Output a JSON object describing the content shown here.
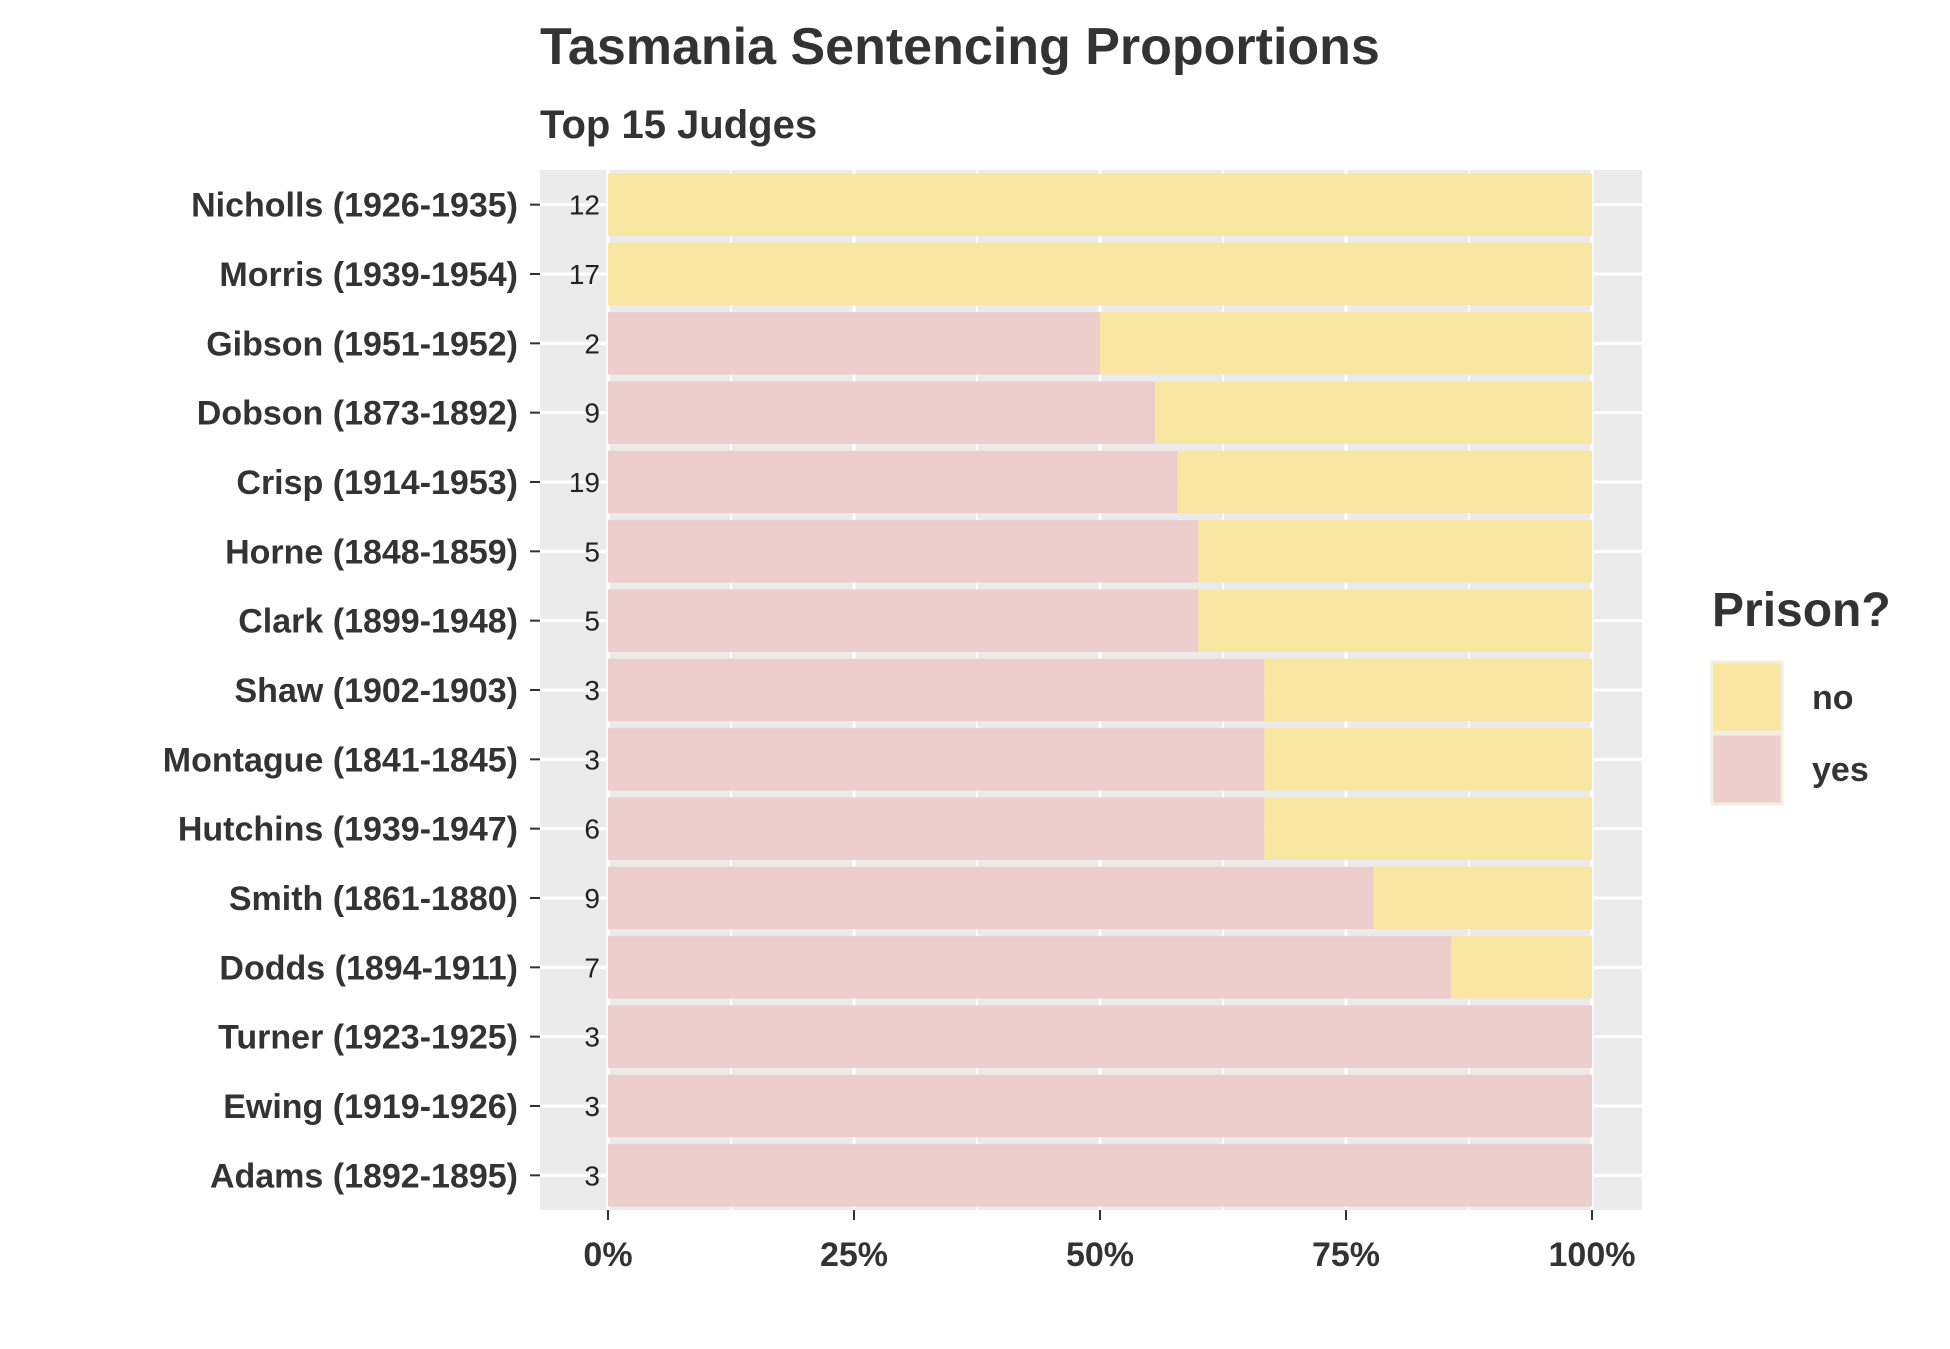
{
  "chart_data": {
    "type": "bar",
    "orientation": "horizontal",
    "stacked": "percent",
    "title": "Tasmania Sentencing Proportions",
    "subtitle": "Top 15 Judges",
    "xlabel": "",
    "ylabel": "",
    "xlim": [
      0,
      100
    ],
    "x_ticks": [
      "0%",
      "25%",
      "50%",
      "75%",
      "100%"
    ],
    "grid": true,
    "legend_position": "right",
    "legend_title": "Prison?",
    "colors": {
      "no": "#fae6a3",
      "yes": "#edcecc",
      "panel": "#ebebeb",
      "grid": "#ffffff"
    },
    "categories": [
      "Nicholls (1926-1935)",
      "Morris (1939-1954)",
      "Gibson (1951-1952)",
      "Dobson (1873-1892)",
      "Crisp (1914-1953)",
      "Horne (1848-1859)",
      "Clark (1899-1948)",
      "Shaw (1902-1903)",
      "Montague (1841-1845)",
      "Hutchins (1939-1947)",
      "Smith (1861-1880)",
      "Dodds (1894-1911)",
      "Turner (1923-1925)",
      "Ewing (1919-1926)",
      "Adams (1892-1895)"
    ],
    "counts": [
      "12",
      "17",
      "2",
      "9",
      "19",
      "5",
      "5",
      "3",
      "3",
      "6",
      "9",
      "7",
      "3",
      "3",
      "3"
    ],
    "series": [
      {
        "name": "yes",
        "values": [
          0,
          0,
          50,
          55.6,
          57.9,
          60,
          60,
          66.7,
          66.7,
          66.7,
          77.8,
          85.7,
          100,
          100,
          100
        ]
      },
      {
        "name": "no",
        "values": [
          100,
          100,
          50,
          44.4,
          42.1,
          40,
          40,
          33.3,
          33.3,
          33.3,
          22.2,
          14.3,
          0,
          0,
          0
        ]
      }
    ],
    "legend_entries": [
      "no",
      "yes"
    ]
  }
}
